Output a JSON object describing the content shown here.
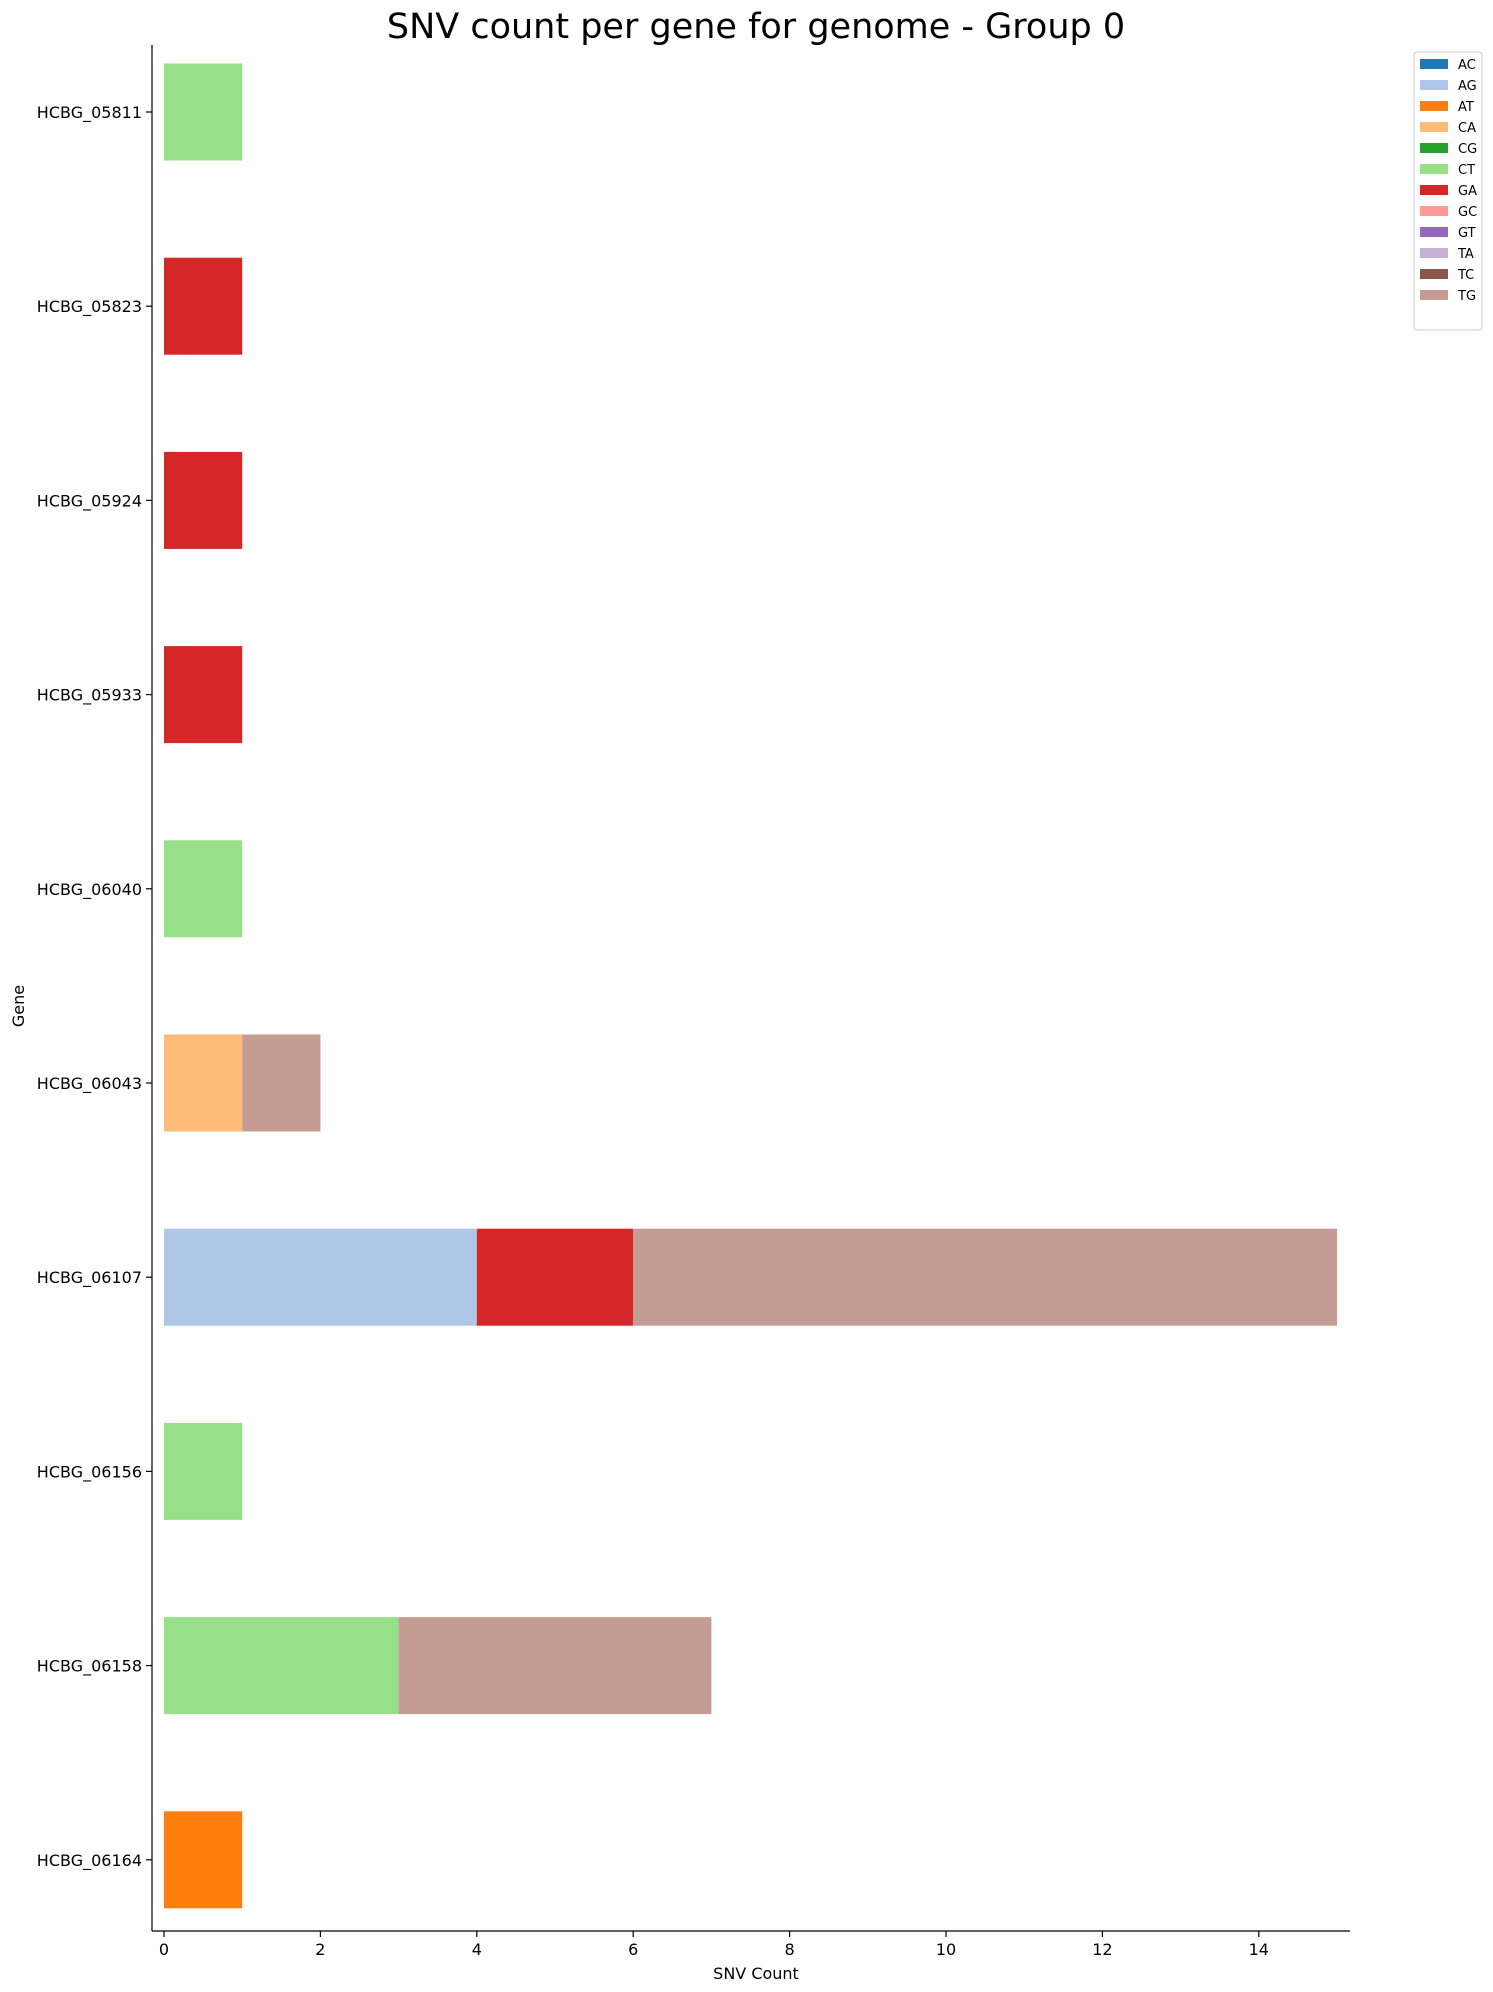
{
  "chart_data": {
    "type": "bar",
    "orientation": "horizontal",
    "stacked": true,
    "title": "SNV count per gene for genome - Group 0",
    "xlabel": "SNV Count",
    "ylabel": "Gene",
    "xlim": [
      0,
      15.2
    ],
    "xticks": [
      0,
      2,
      4,
      6,
      8,
      10,
      12,
      14
    ],
    "grid": false,
    "legend_position": "top-right-outside",
    "categories": [
      "HCBG_05811",
      "HCBG_05823",
      "HCBG_05924",
      "HCBG_05933",
      "HCBG_06040",
      "HCBG_06043",
      "HCBG_06107",
      "HCBG_06156",
      "HCBG_06158",
      "HCBG_06164"
    ],
    "series": [
      {
        "name": "AC",
        "color": "#1f77b4",
        "values": [
          0,
          0,
          0,
          0,
          0,
          0,
          0,
          0,
          0,
          0
        ]
      },
      {
        "name": "AG",
        "color": "#aec7e8",
        "values": [
          0,
          0,
          0,
          0,
          0,
          0,
          4,
          0,
          0,
          0
        ]
      },
      {
        "name": "AT",
        "color": "#ff7f0e",
        "values": [
          0,
          0,
          0,
          0,
          0,
          0,
          0,
          0,
          0,
          1
        ]
      },
      {
        "name": "CA",
        "color": "#ffbb78",
        "values": [
          0,
          0,
          0,
          0,
          0,
          1,
          0,
          0,
          0,
          0
        ]
      },
      {
        "name": "CG",
        "color": "#2ca02c",
        "values": [
          0,
          0,
          0,
          0,
          0,
          0,
          0,
          0,
          0,
          0
        ]
      },
      {
        "name": "CT",
        "color": "#98df8a",
        "values": [
          1,
          0,
          0,
          0,
          1,
          0,
          0,
          1,
          3,
          0
        ]
      },
      {
        "name": "GA",
        "color": "#d62728",
        "values": [
          0,
          1,
          1,
          1,
          0,
          0,
          2,
          0,
          0,
          0
        ]
      },
      {
        "name": "GC",
        "color": "#ff9896",
        "values": [
          0,
          0,
          0,
          0,
          0,
          0,
          0,
          0,
          0,
          0
        ]
      },
      {
        "name": "GT",
        "color": "#9467bd",
        "values": [
          0,
          0,
          0,
          0,
          0,
          0,
          0,
          0,
          0,
          0
        ]
      },
      {
        "name": "TA",
        "color": "#c5b0d5",
        "values": [
          0,
          0,
          0,
          0,
          0,
          0,
          0,
          0,
          0,
          0
        ]
      },
      {
        "name": "TC",
        "color": "#8c564b",
        "values": [
          0,
          0,
          0,
          0,
          0,
          0,
          0,
          0,
          0,
          0
        ]
      },
      {
        "name": "TG",
        "color": "#c49c94",
        "values": [
          0,
          0,
          0,
          0,
          0,
          1,
          9,
          0,
          4,
          0
        ]
      }
    ]
  }
}
